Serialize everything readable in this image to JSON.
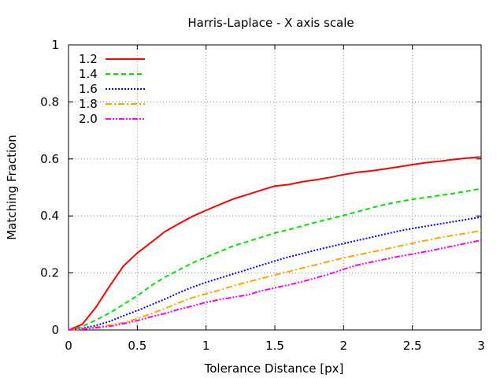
{
  "chart_data": {
    "type": "line",
    "title": "Harris-Laplace - X axis scale",
    "xlabel": "Tolerance Distance [px]",
    "ylabel": "Matching Fraction",
    "xlim": [
      0,
      3
    ],
    "ylim": [
      0,
      1
    ],
    "xticks": [
      "0",
      "0.5",
      "1",
      "1.5",
      "2",
      "2.5",
      "3"
    ],
    "yticks": [
      "0",
      "0.2",
      "0.4",
      "0.6",
      "0.8",
      "1"
    ],
    "grid": true,
    "legend_position": "top-left",
    "x": [
      0,
      0.1,
      0.2,
      0.3,
      0.4,
      0.5,
      0.6,
      0.7,
      0.8,
      0.9,
      1.0,
      1.1,
      1.2,
      1.3,
      1.4,
      1.5,
      1.6,
      1.7,
      1.8,
      1.9,
      2.0,
      2.1,
      2.2,
      2.3,
      2.4,
      2.5,
      2.6,
      2.7,
      2.8,
      2.9,
      3.0
    ],
    "series": [
      {
        "name": "1.2",
        "color": "#ff0000",
        "dash": "solid",
        "values": [
          0.0,
          0.02,
          0.08,
          0.155,
          0.225,
          0.27,
          0.307,
          0.345,
          0.372,
          0.398,
          0.42,
          0.44,
          0.46,
          0.475,
          0.49,
          0.505,
          0.51,
          0.52,
          0.527,
          0.535,
          0.545,
          0.553,
          0.558,
          0.565,
          0.572,
          0.58,
          0.587,
          0.592,
          0.598,
          0.603,
          0.607
        ]
      },
      {
        "name": "1.4",
        "color": "#00e000",
        "dash": "dashed",
        "values": [
          0.0,
          0.012,
          0.035,
          0.06,
          0.09,
          0.12,
          0.155,
          0.185,
          0.21,
          0.235,
          0.255,
          0.275,
          0.295,
          0.31,
          0.325,
          0.34,
          0.352,
          0.365,
          0.378,
          0.39,
          0.402,
          0.415,
          0.428,
          0.44,
          0.45,
          0.458,
          0.465,
          0.472,
          0.479,
          0.487,
          0.496
        ]
      },
      {
        "name": "1.6",
        "color": "#0000ff",
        "dash": "dotted",
        "values": [
          0.0,
          0.006,
          0.016,
          0.03,
          0.05,
          0.068,
          0.088,
          0.108,
          0.13,
          0.15,
          0.167,
          0.182,
          0.197,
          0.212,
          0.227,
          0.242,
          0.256,
          0.268,
          0.28,
          0.292,
          0.303,
          0.314,
          0.325,
          0.336,
          0.347,
          0.356,
          0.364,
          0.372,
          0.38,
          0.388,
          0.396
        ]
      },
      {
        "name": "1.8",
        "color": "#ffa500",
        "dash": "dashdot",
        "values": [
          0.0,
          0.004,
          0.01,
          0.017,
          0.026,
          0.04,
          0.057,
          0.075,
          0.095,
          0.113,
          0.127,
          0.14,
          0.155,
          0.168,
          0.18,
          0.193,
          0.205,
          0.217,
          0.229,
          0.241,
          0.253,
          0.263,
          0.273,
          0.283,
          0.294,
          0.304,
          0.314,
          0.324,
          0.332,
          0.34,
          0.348
        ]
      },
      {
        "name": "2.0",
        "color": "#ff00ff",
        "dash": "dashdotdot",
        "values": [
          0.0,
          0.003,
          0.008,
          0.013,
          0.022,
          0.033,
          0.046,
          0.058,
          0.072,
          0.084,
          0.097,
          0.107,
          0.115,
          0.123,
          0.137,
          0.148,
          0.158,
          0.17,
          0.183,
          0.197,
          0.213,
          0.228,
          0.238,
          0.248,
          0.258,
          0.266,
          0.275,
          0.285,
          0.295,
          0.305,
          0.315
        ]
      }
    ]
  }
}
